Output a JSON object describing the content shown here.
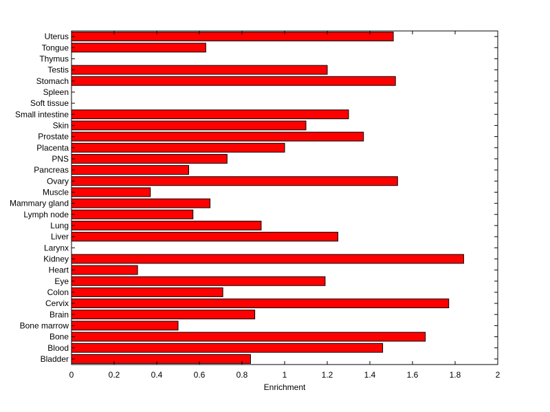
{
  "chart_data": {
    "type": "bar",
    "orientation": "horizontal",
    "xlabel": "Enrichment",
    "ylabel": "",
    "title": "",
    "xlim": [
      0,
      2
    ],
    "xticks": [
      0,
      0.2,
      0.4,
      0.6,
      0.8,
      1,
      1.2,
      1.4,
      1.6,
      1.8,
      2
    ],
    "xtick_labels": [
      "0",
      "0.2",
      "0.4",
      "0.6",
      "0.8",
      "1",
      "1.2",
      "1.4",
      "1.6",
      "1.8",
      "2"
    ],
    "grid": false,
    "bar_color": "#ff0000",
    "edge_color": "#000000",
    "categories": [
      "Uterus",
      "Tongue",
      "Thymus",
      "Testis",
      "Stomach",
      "Spleen",
      "Soft tissue",
      "Small intestine",
      "Skin",
      "Prostate",
      "Placenta",
      "PNS",
      "Pancreas",
      "Ovary",
      "Muscle",
      "Mammary gland",
      "Lymph node",
      "Lung",
      "Liver",
      "Larynx",
      "Kidney",
      "Heart",
      "Eye",
      "Colon",
      "Cervix",
      "Brain",
      "Bone marrow",
      "Bone",
      "Blood",
      "Bladder"
    ],
    "values": [
      1.51,
      0.63,
      0,
      1.2,
      1.52,
      0,
      0,
      1.3,
      1.1,
      1.37,
      1.0,
      0.73,
      0.55,
      1.53,
      0.37,
      0.65,
      0.57,
      0.89,
      1.25,
      0,
      1.84,
      0.31,
      1.19,
      0.71,
      1.77,
      0.86,
      0.5,
      1.66,
      1.46,
      0.84
    ]
  }
}
